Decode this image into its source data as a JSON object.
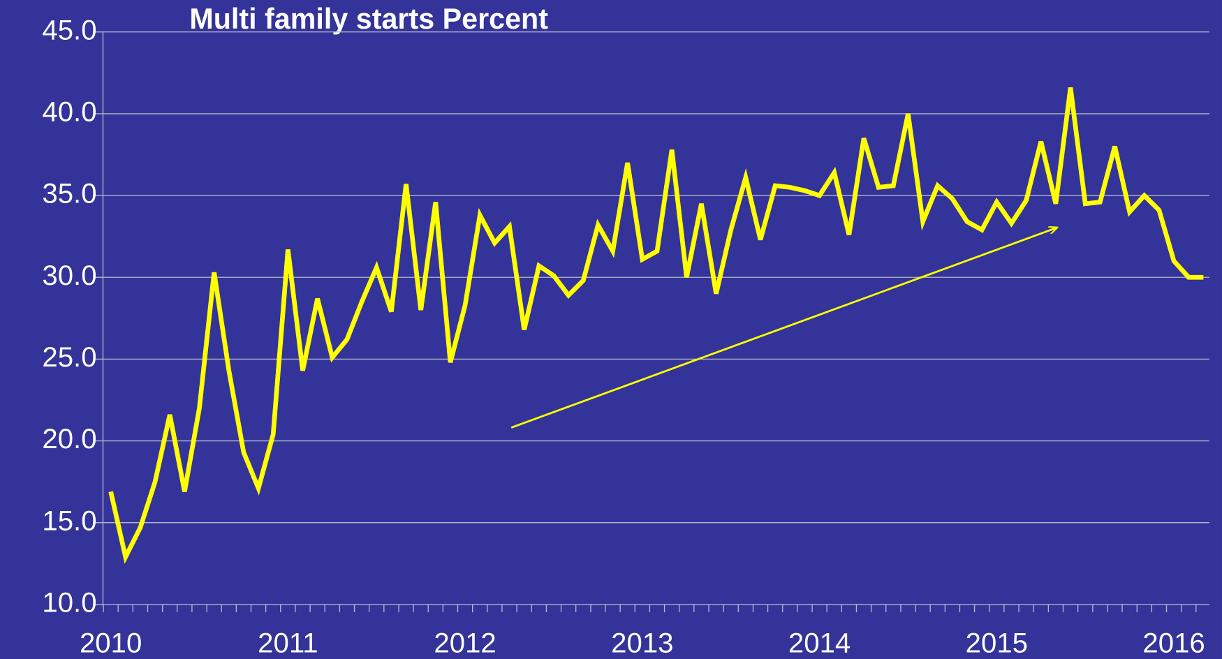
{
  "chart_data": {
    "type": "line",
    "title": "Multi family starts Percent",
    "categories": [
      "2010",
      null,
      null,
      null,
      null,
      null,
      null,
      null,
      null,
      null,
      null,
      null,
      "2011",
      null,
      null,
      null,
      null,
      null,
      null,
      null,
      null,
      null,
      null,
      null,
      "2012",
      null,
      null,
      null,
      null,
      null,
      null,
      null,
      null,
      null,
      null,
      null,
      "2013",
      null,
      null,
      null,
      null,
      null,
      null,
      null,
      null,
      null,
      null,
      null,
      "2014",
      null,
      null,
      null,
      null,
      null,
      null,
      null,
      null,
      null,
      null,
      null,
      "2015",
      null,
      null,
      null,
      null,
      null,
      null,
      null,
      null,
      null,
      null,
      null,
      "2016",
      null,
      null
    ],
    "series": [
      {
        "color": "#ffff00",
        "values": [
          16.9,
          12.9,
          14.7,
          17.5,
          21.6,
          16.9,
          22.0,
          30.3,
          24.3,
          19.3,
          17.1,
          20.4,
          31.7,
          24.3,
          28.7,
          25.1,
          26.2,
          28.5,
          30.6,
          27.9,
          35.7,
          28.0,
          34.6,
          24.8,
          28.3,
          33.8,
          32.1,
          33.1,
          26.8,
          30.7,
          30.1,
          28.9,
          29.8,
          33.2,
          31.6,
          37.0,
          31.1,
          31.6,
          37.8,
          30.0,
          34.5,
          29.0,
          32.9,
          36.1,
          32.3,
          35.6,
          35.5,
          35.3,
          35.0,
          36.4,
          32.6,
          38.5,
          35.5,
          35.6,
          40.0,
          33.4,
          35.6,
          34.8,
          33.4,
          32.9,
          34.6,
          33.3,
          34.7,
          38.3,
          34.5,
          41.6,
          34.5,
          34.6,
          38.0,
          34.0,
          35.0,
          34.1,
          31.0,
          30.0,
          30.0
        ]
      }
    ],
    "ylim": [
      10,
      45
    ],
    "yticks": [
      {
        "value": 10,
        "label": "10.0"
      },
      {
        "value": 15,
        "label": "15.0"
      },
      {
        "value": 20,
        "label": "20.0"
      },
      {
        "value": 25,
        "label": "25.0"
      },
      {
        "value": 30,
        "label": "30.0"
      },
      {
        "value": 35,
        "label": "35.0"
      },
      {
        "value": 40,
        "label": "40.0"
      },
      {
        "value": 45,
        "label": "45.0"
      }
    ],
    "grid": true
  }
}
